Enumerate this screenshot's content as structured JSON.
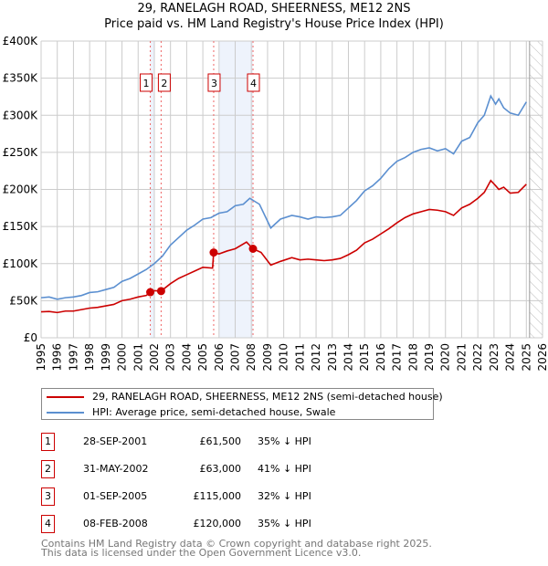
{
  "title_line1": "29, RANELAGH ROAD, SHEERNESS, ME12 2NS",
  "title_line2": "Price paid vs. HM Land Registry's House Price Index (HPI)",
  "colors": {
    "property": "#cc0000",
    "hpi": "#5b8fd0",
    "shade": "#eef3fc",
    "grid": "#cccccc"
  },
  "chart_data": {
    "type": "line",
    "xlim": [
      1995,
      2026
    ],
    "ylim": [
      0,
      400000
    ],
    "y_ticks": [
      {
        "v": 0,
        "label": "£0"
      },
      {
        "v": 50000,
        "label": "£50K"
      },
      {
        "v": 100000,
        "label": "£100K"
      },
      {
        "v": 150000,
        "label": "£150K"
      },
      {
        "v": 200000,
        "label": "£200K"
      },
      {
        "v": 250000,
        "label": "£250K"
      },
      {
        "v": 300000,
        "label": "£300K"
      },
      {
        "v": 350000,
        "label": "£350K"
      },
      {
        "v": 400000,
        "label": "£400K"
      }
    ],
    "x_ticks": [
      "1995",
      "1996",
      "1997",
      "1998",
      "1999",
      "2000",
      "2001",
      "2002",
      "2003",
      "2004",
      "2005",
      "2006",
      "2007",
      "2008",
      "2009",
      "2010",
      "2011",
      "2012",
      "2013",
      "2014",
      "2015",
      "2016",
      "2017",
      "2018",
      "2019",
      "2020",
      "2021",
      "2022",
      "2023",
      "2024",
      "2025",
      "2026"
    ],
    "grid": true,
    "shaded_ranges": [
      [
        2001.75,
        2002.0
      ],
      [
        2006.0,
        2008.1
      ]
    ],
    "forecast_hatch_from": 2025.2,
    "series": [
      {
        "name": "29, RANELAGH ROAD, SHEERNESS, ME12 2NS (semi-detached house)",
        "color": "#cc0000",
        "x": [
          1995,
          1995.5,
          1996,
          1996.5,
          1997,
          1997.5,
          1998,
          1998.5,
          1999,
          1999.5,
          2000,
          2000.5,
          2001,
          2001.5,
          2001.75,
          2002,
          2002.42,
          2003,
          2003.5,
          2004,
          2004.5,
          2005,
          2005.6,
          2005.67,
          2006,
          2006.5,
          2007,
          2007.7,
          2008.1,
          2008.6,
          2009.2,
          2009.8,
          2010.5,
          2011,
          2011.5,
          2012,
          2012.5,
          2013,
          2013.5,
          2014,
          2014.5,
          2015,
          2015.5,
          2016,
          2016.5,
          2017,
          2017.5,
          2018,
          2018.5,
          2019,
          2019.5,
          2020,
          2020.5,
          2021,
          2021.5,
          2022,
          2022.4,
          2022.8,
          2023.1,
          2023.3,
          2023.6,
          2024,
          2024.5,
          2025
        ],
        "y": [
          35000,
          35500,
          34000,
          36000,
          36000,
          38000,
          40000,
          41000,
          43000,
          45000,
          50000,
          52000,
          55000,
          57000,
          61500,
          63500,
          63000,
          73000,
          80000,
          85000,
          90000,
          95000,
          94000,
          115000,
          113000,
          117000,
          120000,
          129000,
          120000,
          115000,
          98000,
          103000,
          108000,
          105000,
          106000,
          105000,
          104000,
          105000,
          107000,
          112000,
          118000,
          128000,
          133000,
          140000,
          147000,
          155000,
          162000,
          167000,
          170000,
          173000,
          172000,
          170000,
          165000,
          175000,
          180000,
          188000,
          196000,
          212000,
          205000,
          200000,
          203000,
          195000,
          196000,
          207000
        ]
      },
      {
        "name": "HPI: Average price, semi-detached house, Swale",
        "color": "#5b8fd0",
        "x": [
          1995,
          1995.5,
          1996,
          1996.5,
          1997,
          1997.5,
          1998,
          1998.5,
          1999,
          1999.5,
          2000,
          2000.5,
          2001,
          2001.5,
          2002,
          2002.5,
          2003,
          2003.5,
          2004,
          2004.5,
          2005,
          2005.5,
          2006,
          2006.5,
          2007,
          2007.5,
          2007.9,
          2008.5,
          2009.2,
          2009.8,
          2010.5,
          2011,
          2011.5,
          2012,
          2012.5,
          2013,
          2013.5,
          2014,
          2014.5,
          2015,
          2015.5,
          2016,
          2016.5,
          2017,
          2017.5,
          2018,
          2018.5,
          2019,
          2019.5,
          2020,
          2020.5,
          2021,
          2021.5,
          2022,
          2022.4,
          2022.8,
          2023.1,
          2023.3,
          2023.6,
          2024,
          2024.5,
          2025
        ],
        "y": [
          54000,
          55000,
          52000,
          54000,
          55000,
          57000,
          61000,
          62000,
          65000,
          68000,
          76000,
          80000,
          86000,
          92000,
          100000,
          110000,
          125000,
          135000,
          145000,
          152000,
          160000,
          162000,
          168000,
          170000,
          178000,
          180000,
          188000,
          180000,
          148000,
          160000,
          165000,
          163000,
          160000,
          163000,
          162000,
          163000,
          165000,
          175000,
          185000,
          198000,
          205000,
          215000,
          228000,
          238000,
          243000,
          250000,
          254000,
          256000,
          252000,
          255000,
          248000,
          265000,
          270000,
          290000,
          300000,
          326000,
          315000,
          322000,
          310000,
          303000,
          300000,
          318000
        ]
      }
    ],
    "sales": [
      {
        "n": "1",
        "x": 2001.75,
        "y": 61500
      },
      {
        "n": "2",
        "x": 2002.42,
        "y": 63000
      },
      {
        "n": "3",
        "x": 2005.67,
        "y": 115000
      },
      {
        "n": "4",
        "x": 2008.1,
        "y": 120000
      }
    ]
  },
  "legend": {
    "property": "29, RANELAGH ROAD, SHEERNESS, ME12 2NS (semi-detached house)",
    "hpi": "HPI: Average price, semi-detached house, Swale"
  },
  "transactions": [
    {
      "n": "1",
      "date": "28-SEP-2001",
      "price": "£61,500",
      "hpi": "35% ↓ HPI"
    },
    {
      "n": "2",
      "date": "31-MAY-2002",
      "price": "£63,000",
      "hpi": "41% ↓ HPI"
    },
    {
      "n": "3",
      "date": "01-SEP-2005",
      "price": "£115,000",
      "hpi": "32% ↓ HPI"
    },
    {
      "n": "4",
      "date": "08-FEB-2008",
      "price": "£120,000",
      "hpi": "35% ↓ HPI"
    }
  ],
  "footer": {
    "line1": "Contains HM Land Registry data © Crown copyright and database right 2025.",
    "line2": "This data is licensed under the Open Government Licence v3.0."
  }
}
